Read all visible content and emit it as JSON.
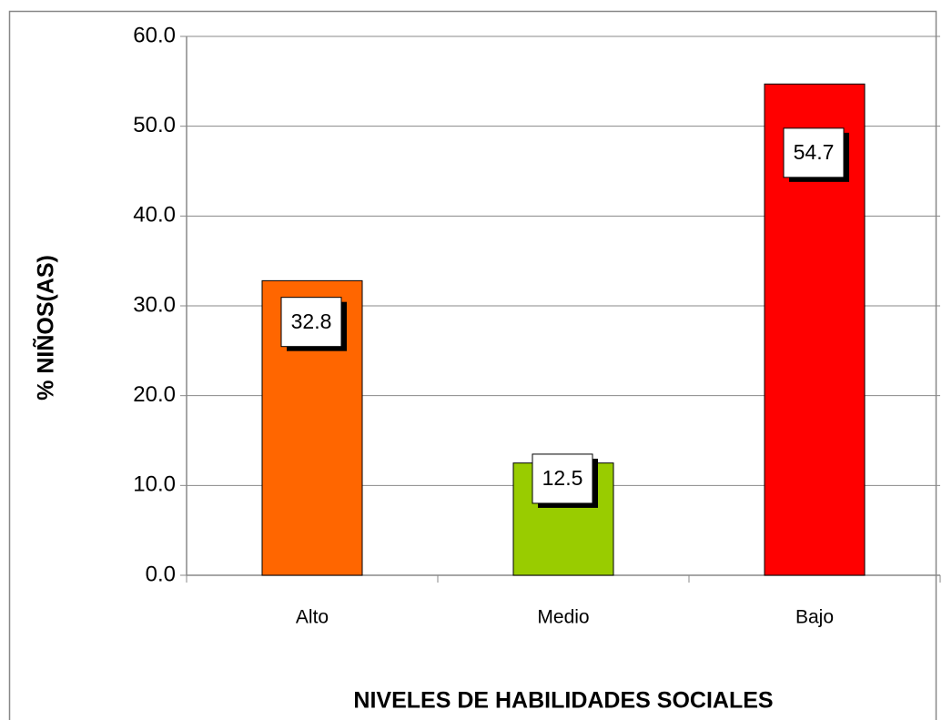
{
  "chart_data": {
    "type": "bar",
    "x_label": "NIVELES DE HABILIDADES SOCIALES",
    "y_label": "% NIÑOS(AS)",
    "categories": [
      "Alto",
      "Medio",
      "Bajo"
    ],
    "values": [
      32.8,
      12.5,
      54.7
    ],
    "colors": [
      "#ff6600",
      "#99cc00",
      "#ff0000"
    ],
    "ylim": [
      0,
      60
    ],
    "yticks": [
      {
        "value": 0,
        "label": "0.0"
      },
      {
        "value": 10,
        "label": "10.0"
      },
      {
        "value": 20,
        "label": "20.0"
      },
      {
        "value": 30,
        "label": "30.0"
      },
      {
        "value": 40,
        "label": "40.0"
      },
      {
        "value": 50,
        "label": "50.0"
      },
      {
        "value": 60,
        "label": "60.0"
      }
    ],
    "grid": true
  }
}
